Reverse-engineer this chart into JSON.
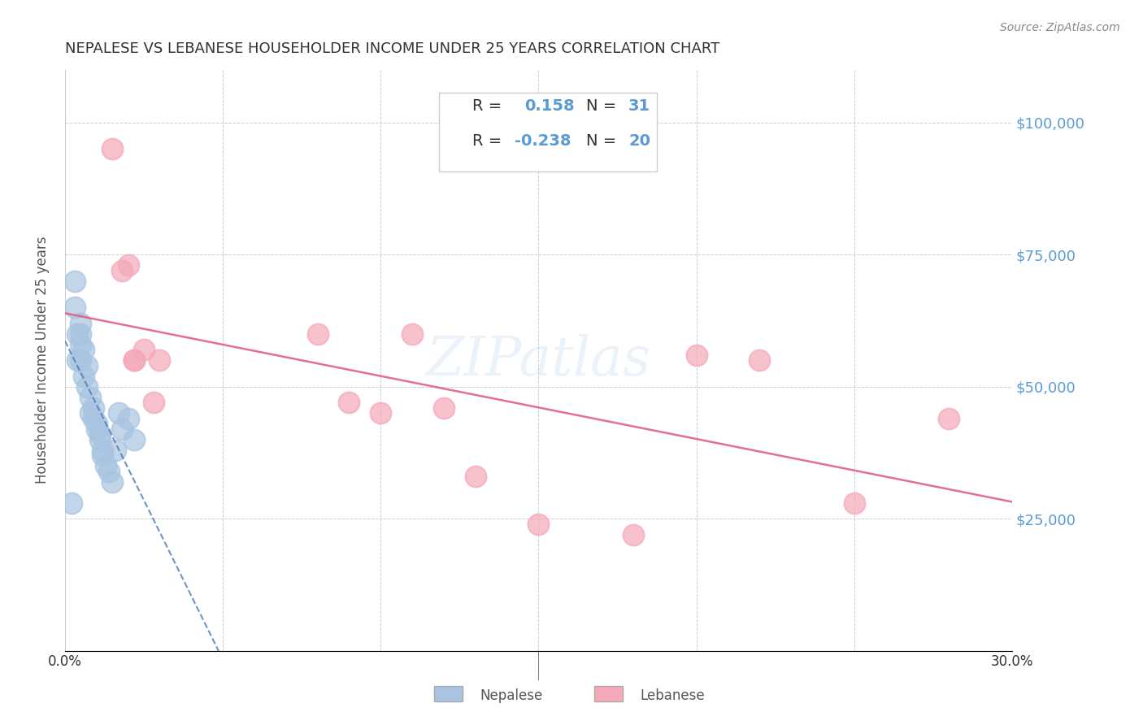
{
  "title": "NEPALESE VS LEBANESE HOUSEHOLDER INCOME UNDER 25 YEARS CORRELATION CHART",
  "source": "Source: ZipAtlas.com",
  "xlabel": "",
  "ylabel": "Householder Income Under 25 years",
  "xlim": [
    0,
    0.3
  ],
  "ylim": [
    0,
    110000
  ],
  "yticks": [
    0,
    25000,
    50000,
    75000,
    100000
  ],
  "ytick_labels": [
    "",
    "$25,000",
    "$50,000",
    "$75,000",
    "$100,000"
  ],
  "xticks": [
    0.0,
    0.05,
    0.1,
    0.15,
    0.2,
    0.25,
    0.3
  ],
  "xtick_labels": [
    "0.0%",
    "",
    "",
    "",
    "",
    "",
    "30.0%"
  ],
  "nepalese_R": 0.158,
  "nepalese_N": 31,
  "lebanese_R": -0.238,
  "lebanese_N": 20,
  "nepalese_color": "#a8c4e0",
  "lebanese_color": "#f4a8b8",
  "nepalese_line_color": "#4a7ab5",
  "lebanese_line_color": "#e06080",
  "watermark": "ZIPatlas",
  "background_color": "#ffffff",
  "nepalese_x": [
    0.002,
    0.003,
    0.003,
    0.004,
    0.004,
    0.005,
    0.005,
    0.005,
    0.005,
    0.006,
    0.006,
    0.007,
    0.007,
    0.008,
    0.008,
    0.009,
    0.009,
    0.01,
    0.01,
    0.011,
    0.011,
    0.012,
    0.012,
    0.013,
    0.014,
    0.015,
    0.016,
    0.017,
    0.018,
    0.02,
    0.022
  ],
  "nepalese_y": [
    28000,
    65000,
    70000,
    55000,
    60000,
    58000,
    60000,
    62000,
    55000,
    57000,
    52000,
    54000,
    50000,
    48000,
    45000,
    46000,
    44000,
    43000,
    42000,
    41000,
    40000,
    38000,
    37000,
    35000,
    34000,
    32000,
    38000,
    45000,
    42000,
    44000,
    40000
  ],
  "lebanese_x": [
    0.015,
    0.018,
    0.02,
    0.022,
    0.022,
    0.025,
    0.028,
    0.03,
    0.08,
    0.09,
    0.1,
    0.11,
    0.12,
    0.13,
    0.15,
    0.18,
    0.2,
    0.22,
    0.25,
    0.28
  ],
  "lebanese_y": [
    95000,
    72000,
    73000,
    55000,
    55000,
    57000,
    47000,
    55000,
    60000,
    47000,
    45000,
    60000,
    46000,
    33000,
    24000,
    22000,
    56000,
    55000,
    28000,
    44000
  ]
}
